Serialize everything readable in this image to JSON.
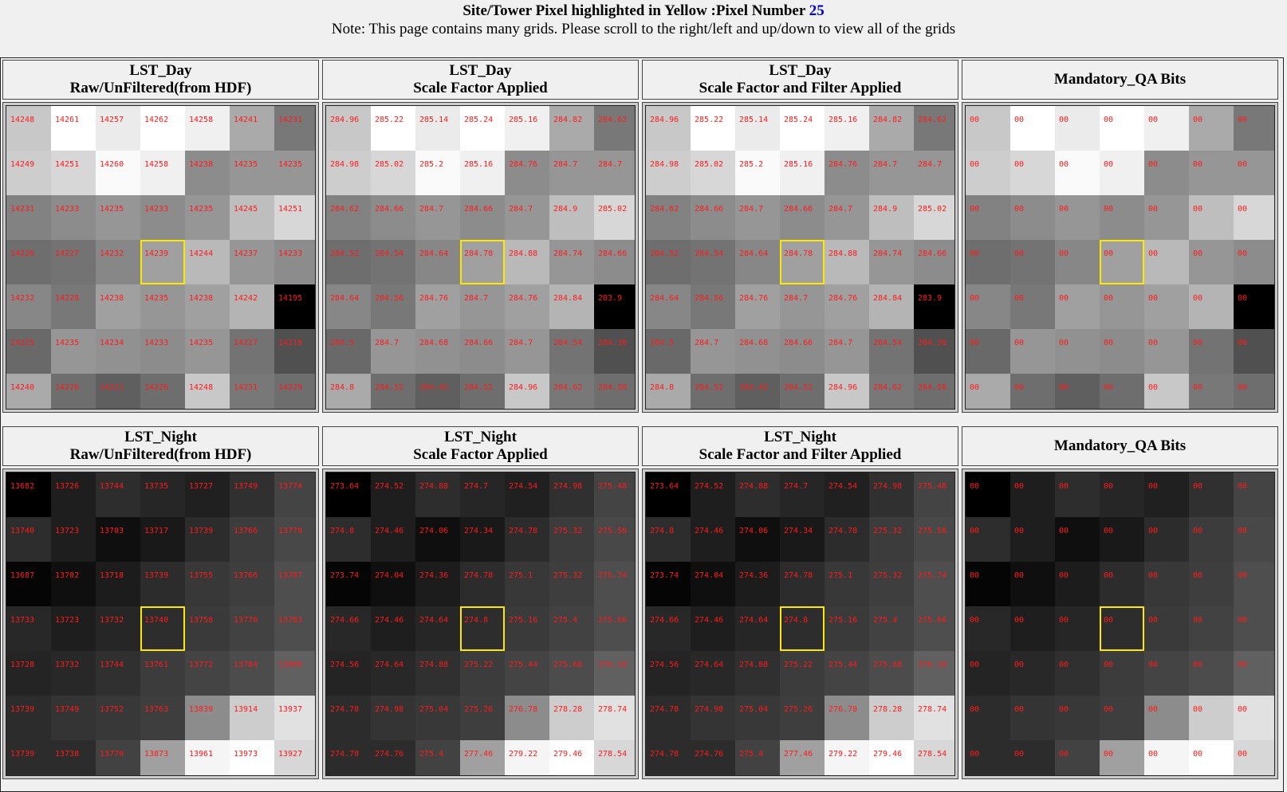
{
  "header": {
    "title_text": "Site/Tower Pixel highlighted in Yellow :Pixel Number",
    "pixel_number": "25",
    "note": "Note: This page contains many grids. Please scroll to the right/left and up/down to view all of the grids"
  },
  "highlight_row": 3,
  "highlight_col": 3,
  "panels": [
    {
      "title1": "LST_Day",
      "title2": "Raw/UnFiltered(from HDF)",
      "values": [
        [
          "14248",
          "14261",
          "14257",
          "14262",
          "14258",
          "14241",
          "14231"
        ],
        [
          "14249",
          "14251",
          "14260",
          "14258",
          "14238",
          "14235",
          "14235"
        ],
        [
          "14231",
          "14233",
          "14235",
          "14233",
          "14235",
          "14245",
          "14251"
        ],
        [
          "14226",
          "14227",
          "14232",
          "14239",
          "14244",
          "14237",
          "14233"
        ],
        [
          "14232",
          "14228",
          "14238",
          "14235",
          "14238",
          "14242",
          "14195"
        ],
        [
          "14225",
          "14235",
          "14234",
          "14233",
          "14235",
          "14227",
          "14219"
        ],
        [
          "14240",
          "14226",
          "14221",
          "14226",
          "14248",
          "14231",
          "14229"
        ]
      ],
      "shades": [
        [
          200,
          255,
          235,
          255,
          240,
          170,
          120
        ],
        [
          205,
          215,
          250,
          240,
          140,
          150,
          150
        ],
        [
          130,
          140,
          150,
          140,
          150,
          190,
          215
        ],
        [
          110,
          115,
          135,
          160,
          185,
          150,
          140
        ],
        [
          135,
          120,
          160,
          150,
          160,
          180,
          0
        ],
        [
          105,
          150,
          145,
          140,
          150,
          115,
          80
        ],
        [
          170,
          110,
          95,
          110,
          200,
          120,
          110
        ]
      ]
    },
    {
      "title1": "LST_Day",
      "title2": "Scale Factor Applied",
      "values": [
        [
          "284.96",
          "285.22",
          "285.14",
          "285.24",
          "285.16",
          "284.82",
          "284.62"
        ],
        [
          "284.98",
          "285.02",
          "285.2",
          "285.16",
          "284.76",
          "284.7",
          "284.7"
        ],
        [
          "284.62",
          "284.66",
          "284.7",
          "284.66",
          "284.7",
          "284.9",
          "285.02"
        ],
        [
          "284.52",
          "284.54",
          "284.64",
          "284.78",
          "284.88",
          "284.74",
          "284.66"
        ],
        [
          "284.64",
          "284.56",
          "284.76",
          "284.7",
          "284.76",
          "284.84",
          "283.9"
        ],
        [
          "284.5",
          "284.7",
          "284.68",
          "284.66",
          "284.7",
          "284.54",
          "284.38"
        ],
        [
          "284.8",
          "284.52",
          "284.42",
          "284.52",
          "284.96",
          "284.62",
          "284.58"
        ]
      ],
      "shades": [
        [
          200,
          255,
          235,
          255,
          240,
          170,
          120
        ],
        [
          205,
          215,
          250,
          240,
          140,
          150,
          150
        ],
        [
          130,
          140,
          150,
          140,
          150,
          190,
          215
        ],
        [
          110,
          115,
          135,
          160,
          185,
          150,
          140
        ],
        [
          135,
          120,
          160,
          150,
          160,
          180,
          0
        ],
        [
          105,
          150,
          145,
          140,
          150,
          115,
          80
        ],
        [
          170,
          110,
          95,
          110,
          200,
          120,
          110
        ]
      ]
    },
    {
      "title1": "LST_Day",
      "title2": "Scale Factor and Filter Applied",
      "values": [
        [
          "284.96",
          "285.22",
          "285.14",
          "285.24",
          "285.16",
          "284.82",
          "284.62"
        ],
        [
          "284.98",
          "285.02",
          "285.2",
          "285.16",
          "284.76",
          "284.7",
          "284.7"
        ],
        [
          "284.62",
          "284.66",
          "284.7",
          "284.66",
          "284.7",
          "284.9",
          "285.02"
        ],
        [
          "284.52",
          "284.54",
          "284.64",
          "284.78",
          "284.88",
          "284.74",
          "284.66"
        ],
        [
          "284.64",
          "284.56",
          "284.76",
          "284.7",
          "284.76",
          "284.84",
          "283.9"
        ],
        [
          "284.5",
          "284.7",
          "284.68",
          "284.66",
          "284.7",
          "284.54",
          "284.38"
        ],
        [
          "284.8",
          "284.52",
          "284.42",
          "284.52",
          "284.96",
          "284.62",
          "284.58"
        ]
      ],
      "shades": [
        [
          200,
          255,
          235,
          255,
          240,
          170,
          120
        ],
        [
          205,
          215,
          250,
          240,
          140,
          150,
          150
        ],
        [
          130,
          140,
          150,
          140,
          150,
          190,
          215
        ],
        [
          110,
          115,
          135,
          160,
          185,
          150,
          140
        ],
        [
          135,
          120,
          160,
          150,
          160,
          180,
          0
        ],
        [
          105,
          150,
          145,
          140,
          150,
          115,
          80
        ],
        [
          170,
          110,
          95,
          110,
          200,
          120,
          110
        ]
      ]
    },
    {
      "title1": "Mandatory_QA Bits",
      "title2": "",
      "values": [
        [
          "00",
          "00",
          "00",
          "00",
          "00",
          "00",
          "00"
        ],
        [
          "00",
          "00",
          "00",
          "00",
          "00",
          "00",
          "00"
        ],
        [
          "00",
          "00",
          "00",
          "00",
          "00",
          "00",
          "00"
        ],
        [
          "00",
          "00",
          "00",
          "00",
          "00",
          "00",
          "00"
        ],
        [
          "00",
          "00",
          "00",
          "00",
          "00",
          "00",
          "00"
        ],
        [
          "00",
          "00",
          "00",
          "00",
          "00",
          "00",
          "00"
        ],
        [
          "00",
          "00",
          "00",
          "00",
          "00",
          "00",
          "00"
        ]
      ],
      "shades": [
        [
          200,
          255,
          235,
          255,
          240,
          170,
          120
        ],
        [
          205,
          215,
          250,
          240,
          140,
          150,
          150
        ],
        [
          130,
          140,
          150,
          140,
          150,
          190,
          215
        ],
        [
          110,
          115,
          135,
          160,
          185,
          150,
          140
        ],
        [
          135,
          120,
          160,
          150,
          160,
          180,
          0
        ],
        [
          105,
          150,
          145,
          140,
          150,
          115,
          80
        ],
        [
          170,
          110,
          95,
          110,
          200,
          120,
          110
        ]
      ]
    },
    {
      "title1": "LST_Night",
      "title2": "Raw/UnFiltered(from HDF)",
      "values": [
        [
          "13682",
          "13726",
          "13744",
          "13735",
          "13727",
          "13749",
          "13774"
        ],
        [
          "13740",
          "13723",
          "13703",
          "13717",
          "13739",
          "13766",
          "13779"
        ],
        [
          "13687",
          "13702",
          "13718",
          "13739",
          "13755",
          "13766",
          "13787"
        ],
        [
          "13733",
          "13723",
          "13732",
          "13740",
          "13758",
          "13770",
          "13783"
        ],
        [
          "13728",
          "13732",
          "13744",
          "13761",
          "13772",
          "13784",
          "13809"
        ],
        [
          "13739",
          "13749",
          "13752",
          "13763",
          "13839",
          "13914",
          "13937"
        ],
        [
          "13739",
          "13738",
          "13770",
          "13873",
          "13961",
          "13973",
          "13927"
        ]
      ],
      "shades": [
        [
          0,
          30,
          45,
          38,
          32,
          48,
          68
        ],
        [
          45,
          30,
          15,
          25,
          44,
          60,
          72
        ],
        [
          5,
          15,
          28,
          44,
          56,
          62,
          78
        ],
        [
          40,
          30,
          38,
          45,
          58,
          66,
          78
        ],
        [
          36,
          40,
          48,
          60,
          68,
          76,
          96
        ],
        [
          44,
          52,
          56,
          62,
          140,
          205,
          225
        ],
        [
          44,
          44,
          66,
          160,
          245,
          255,
          215
        ]
      ]
    },
    {
      "title1": "LST_Night",
      "title2": "Scale Factor Applied",
      "values": [
        [
          "273.64",
          "274.52",
          "274.88",
          "274.7",
          "274.54",
          "274.98",
          "275.48"
        ],
        [
          "274.8",
          "274.46",
          "274.06",
          "274.34",
          "274.78",
          "275.32",
          "275.58"
        ],
        [
          "273.74",
          "274.04",
          "274.36",
          "274.78",
          "275.1",
          "275.32",
          "275.74"
        ],
        [
          "274.66",
          "274.46",
          "274.64",
          "274.8",
          "275.16",
          "275.4",
          "275.66"
        ],
        [
          "274.56",
          "274.64",
          "274.88",
          "275.22",
          "275.44",
          "275.68",
          "276.18"
        ],
        [
          "274.78",
          "274.98",
          "275.04",
          "275.26",
          "276.78",
          "278.28",
          "278.74"
        ],
        [
          "274.78",
          "274.76",
          "275.4",
          "277.46",
          "279.22",
          "279.46",
          "278.54"
        ]
      ],
      "shades": [
        [
          0,
          30,
          45,
          38,
          32,
          48,
          68
        ],
        [
          45,
          30,
          15,
          25,
          44,
          60,
          72
        ],
        [
          5,
          15,
          28,
          44,
          56,
          62,
          78
        ],
        [
          40,
          30,
          38,
          45,
          58,
          66,
          78
        ],
        [
          36,
          40,
          48,
          60,
          68,
          76,
          96
        ],
        [
          44,
          52,
          56,
          62,
          140,
          205,
          225
        ],
        [
          44,
          44,
          66,
          160,
          245,
          255,
          215
        ]
      ]
    },
    {
      "title1": "LST_Night",
      "title2": "Scale Factor and Filter Applied",
      "values": [
        [
          "273.64",
          "274.52",
          "274.88",
          "274.7",
          "274.54",
          "274.98",
          "275.48"
        ],
        [
          "274.8",
          "274.46",
          "274.06",
          "274.34",
          "274.78",
          "275.32",
          "275.58"
        ],
        [
          "273.74",
          "274.04",
          "274.36",
          "274.78",
          "275.1",
          "275.32",
          "275.74"
        ],
        [
          "274.66",
          "274.46",
          "274.64",
          "274.8",
          "275.16",
          "275.4",
          "275.66"
        ],
        [
          "274.56",
          "274.64",
          "274.88",
          "275.22",
          "275.44",
          "275.68",
          "276.18"
        ],
        [
          "274.78",
          "274.98",
          "275.04",
          "275.26",
          "276.78",
          "278.28",
          "278.74"
        ],
        [
          "274.78",
          "274.76",
          "275.4",
          "277.46",
          "279.22",
          "279.46",
          "278.54"
        ]
      ],
      "shades": [
        [
          0,
          30,
          45,
          38,
          32,
          48,
          68
        ],
        [
          45,
          30,
          15,
          25,
          44,
          60,
          72
        ],
        [
          5,
          15,
          28,
          44,
          56,
          62,
          78
        ],
        [
          40,
          30,
          38,
          45,
          58,
          66,
          78
        ],
        [
          36,
          40,
          48,
          60,
          68,
          76,
          96
        ],
        [
          44,
          52,
          56,
          62,
          140,
          205,
          225
        ],
        [
          44,
          44,
          66,
          160,
          245,
          255,
          215
        ]
      ]
    },
    {
      "title1": "Mandatory_QA Bits",
      "title2": "",
      "values": [
        [
          "00",
          "00",
          "00",
          "00",
          "00",
          "00",
          "00"
        ],
        [
          "00",
          "00",
          "00",
          "00",
          "00",
          "00",
          "00"
        ],
        [
          "00",
          "00",
          "00",
          "00",
          "00",
          "00",
          "00"
        ],
        [
          "00",
          "00",
          "00",
          "00",
          "00",
          "00",
          "00"
        ],
        [
          "00",
          "00",
          "00",
          "00",
          "00",
          "00",
          "00"
        ],
        [
          "00",
          "00",
          "00",
          "00",
          "00",
          "00",
          "00"
        ],
        [
          "00",
          "00",
          "00",
          "00",
          "00",
          "00",
          "00"
        ]
      ],
      "shades": [
        [
          0,
          30,
          45,
          38,
          32,
          48,
          68
        ],
        [
          45,
          30,
          15,
          25,
          44,
          60,
          72
        ],
        [
          5,
          15,
          28,
          44,
          56,
          62,
          78
        ],
        [
          40,
          30,
          38,
          45,
          58,
          66,
          78
        ],
        [
          36,
          40,
          48,
          60,
          68,
          76,
          96
        ],
        [
          44,
          52,
          56,
          62,
          140,
          205,
          225
        ],
        [
          44,
          44,
          66,
          160,
          245,
          255,
          215
        ]
      ]
    }
  ]
}
